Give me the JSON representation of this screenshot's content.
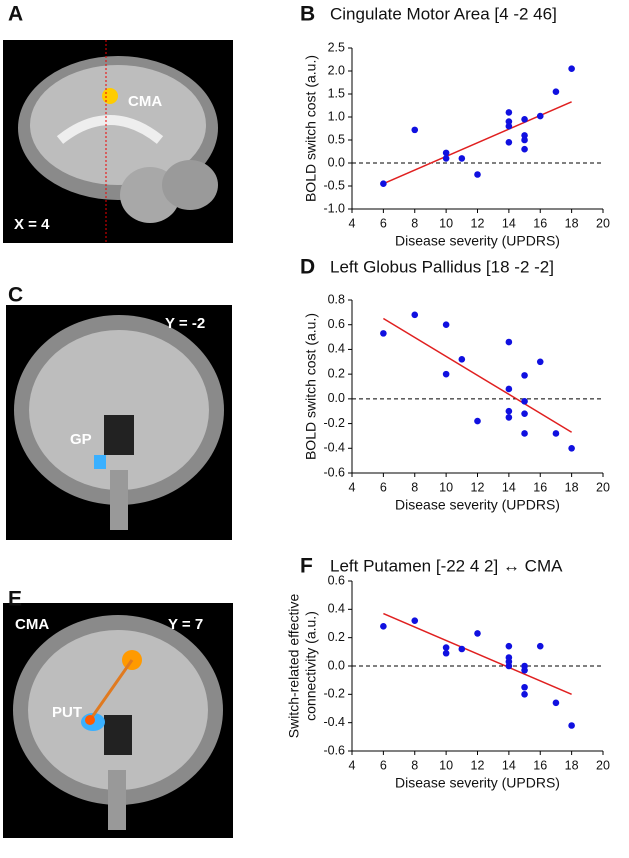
{
  "images": [
    {
      "letter": "A",
      "labels": [
        "CMA",
        "X = 4"
      ]
    },
    {
      "letter": "C",
      "labels": [
        "Y = -2",
        "GP"
      ]
    },
    {
      "letter": "E",
      "labels": [
        "CMA",
        "Y = 7",
        "PUT"
      ]
    }
  ],
  "chart_data": [
    {
      "type": "scatter",
      "panel": "B",
      "title": "Cingulate Motor Area [4 -2 46]",
      "xlabel": "Disease severity (UPDRS)",
      "ylabel": [
        "BOLD switch cost  (a.u.)"
      ],
      "color": "#1010e0",
      "fit_color": "#e02020",
      "x": [
        6,
        8,
        10,
        10,
        11,
        12,
        14,
        14,
        14,
        14,
        15,
        15,
        15,
        15,
        16,
        17,
        18
      ],
      "values": [
        -0.45,
        0.72,
        0.22,
        0.1,
        0.1,
        -0.25,
        1.1,
        0.9,
        0.8,
        0.45,
        0.95,
        0.6,
        0.5,
        0.3,
        1.02,
        1.55,
        2.05
      ],
      "fit": {
        "x": [
          6,
          18
        ],
        "y": [
          -0.45,
          1.33
        ]
      },
      "hline": 0,
      "xlim": [
        4,
        20
      ],
      "xticks": [
        4,
        6,
        8,
        10,
        12,
        14,
        16,
        18,
        20
      ],
      "ylim": [
        -1,
        2.5
      ],
      "yticks": [
        {
          "value": -1,
          "label": "-1.0"
        },
        -0.5,
        {
          "value": 0,
          "label": "0.0"
        },
        0.5,
        {
          "value": 1,
          "label": "1.0"
        },
        1.5,
        {
          "value": 2,
          "label": "2.0"
        },
        2.5
      ]
    },
    {
      "type": "scatter",
      "panel": "D",
      "title": "Left Globus Pallidus [18 -2 -2]",
      "xlabel": "Disease severity (UPDRS)",
      "ylabel": [
        "BOLD switch cost  (a.u.)"
      ],
      "color": "#1010e0",
      "fit_color": "#e02020",
      "x": [
        6,
        8,
        10,
        10,
        11,
        12,
        14,
        14,
        14,
        14,
        15,
        15,
        15,
        15,
        16,
        17,
        18
      ],
      "values": [
        0.53,
        0.68,
        0.6,
        0.2,
        0.32,
        -0.18,
        0.46,
        0.08,
        -0.1,
        -0.15,
        0.19,
        -0.02,
        -0.12,
        -0.28,
        0.3,
        -0.28,
        -0.4
      ],
      "fit": {
        "x": [
          6,
          18
        ],
        "y": [
          0.65,
          -0.27
        ]
      },
      "hline": 0,
      "xlim": [
        4,
        20
      ],
      "xticks": [
        4,
        6,
        8,
        10,
        12,
        14,
        16,
        18,
        20
      ],
      "ylim": [
        -0.6,
        0.8
      ],
      "yticks": [
        -0.6,
        -0.4,
        -0.2,
        {
          "value": 0,
          "label": "0.0"
        },
        0.2,
        0.4,
        0.6,
        0.8
      ]
    },
    {
      "type": "scatter",
      "panel": "F",
      "title": "Left Putamen [-22 4 2] ↔ CMA",
      "xlabel": "Disease severity (UPDRS)",
      "ylabel": [
        "Switch-related effective",
        "connectivity (a.u.)"
      ],
      "color": "#1010e0",
      "fit_color": "#e02020",
      "x": [
        6,
        8,
        10,
        10,
        11,
        12,
        14,
        14,
        14,
        14,
        15,
        15,
        15,
        15,
        16,
        17,
        18
      ],
      "values": [
        0.28,
        0.32,
        0.13,
        0.09,
        0.12,
        0.23,
        0.14,
        0.06,
        0.03,
        0.0,
        0.0,
        -0.03,
        -0.15,
        -0.2,
        0.14,
        -0.26,
        -0.42
      ],
      "fit": {
        "x": [
          6,
          18
        ],
        "y": [
          0.37,
          -0.2
        ]
      },
      "hline": 0,
      "xlim": [
        4,
        20
      ],
      "xticks": [
        4,
        6,
        8,
        10,
        12,
        14,
        16,
        18,
        20
      ],
      "ylim": [
        -0.6,
        0.6
      ],
      "yticks": [
        -0.6,
        -0.4,
        -0.2,
        {
          "value": 0,
          "label": "0.0"
        },
        0.2,
        0.4,
        0.6
      ]
    }
  ]
}
